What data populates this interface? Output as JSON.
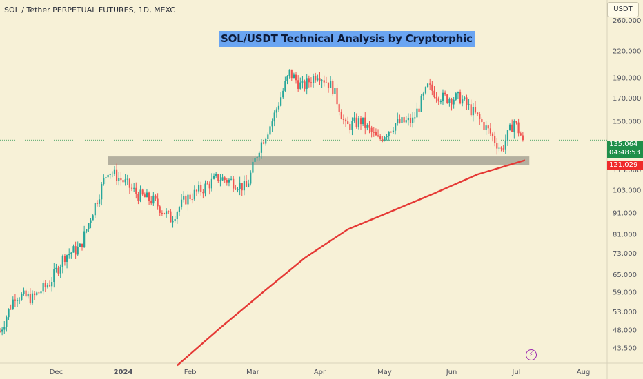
{
  "header": {
    "symbol_line": "SOL / Tether PERPETUAL FUTURES, 1D, MEXC"
  },
  "currency_label": "USDT",
  "current_price": "135.064",
  "countdown": "04:48:53",
  "ma_price": "121.029",
  "bolt_icon": "lightning-icon",
  "colors": {
    "background": "#f7f1d7",
    "up": "#26a69a",
    "down": "#ef5350",
    "ma_line": "#e53935",
    "zone": "#9e9a8c"
  },
  "chart_data": {
    "type": "candlestick",
    "title": "SOL/USDT Technical Analysis by Cryptorphic",
    "scale": "log",
    "y_ticks": [
      260.0,
      220.0,
      190.0,
      170.0,
      150.0,
      135.064,
      115.0,
      103.0,
      91.0,
      81.0,
      73.0,
      65.0,
      59.0,
      53.0,
      48.0,
      43.5
    ],
    "y_tick_labels": [
      "260.000",
      "220.000",
      "190.000",
      "170.000",
      "150.000",
      "115.000",
      "103.000",
      "91.000",
      "81.000",
      "73.000",
      "65.000",
      "59.000",
      "53.000",
      "48.000",
      "43.500"
    ],
    "ylim": [
      40.0,
      290.0
    ],
    "x_labels": [
      {
        "label": "Dec",
        "date": "2023-12-01"
      },
      {
        "label": "2024",
        "date": "2024-01-01"
      },
      {
        "label": "Feb",
        "date": "2024-02-01"
      },
      {
        "label": "Mar",
        "date": "2024-03-01"
      },
      {
        "label": "Apr",
        "date": "2024-04-01"
      },
      {
        "label": "May",
        "date": "2024-05-01"
      },
      {
        "label": "Jun",
        "date": "2024-06-01"
      },
      {
        "label": "Jul",
        "date": "2024-07-01"
      },
      {
        "label": "Aug",
        "date": "2024-08-01"
      }
    ],
    "xlim": [
      "2023-11-05",
      "2024-08-12"
    ],
    "support_zone": {
      "low": 118.0,
      "high": 123.5,
      "start": "2023-12-25",
      "end": "2024-07-07"
    },
    "moving_average": {
      "dates": [
        "2024-01-26",
        "2024-02-15",
        "2024-03-05",
        "2024-03-25",
        "2024-04-14",
        "2024-05-04",
        "2024-05-24",
        "2024-06-13",
        "2024-07-05"
      ],
      "values": [
        39.5,
        48.5,
        58.5,
        71.0,
        83.0,
        91.5,
        101.0,
        112.0,
        121.0
      ]
    },
    "price_anchors": {
      "dates": [
        "2023-11-05",
        "2023-11-12",
        "2023-11-20",
        "2023-11-28",
        "2023-12-05",
        "2023-12-12",
        "2023-12-18",
        "2023-12-25",
        "2024-01-01",
        "2024-01-08",
        "2024-01-15",
        "2024-01-23",
        "2024-01-30",
        "2024-02-06",
        "2024-02-14",
        "2024-02-20",
        "2024-02-27",
        "2024-03-04",
        "2024-03-10",
        "2024-03-18",
        "2024-03-24",
        "2024-03-31",
        "2024-04-07",
        "2024-04-13",
        "2024-04-20",
        "2024-04-28",
        "2024-05-06",
        "2024-05-14",
        "2024-05-21",
        "2024-05-28",
        "2024-06-05",
        "2024-06-12",
        "2024-06-19",
        "2024-06-24",
        "2024-06-30",
        "2024-07-04"
      ],
      "values": [
        47.5,
        58.0,
        57.0,
        62.0,
        72.0,
        75.0,
        92.0,
        115.0,
        108.0,
        100.0,
        97.0,
        88.0,
        98.0,
        103.0,
        110.0,
        108.0,
        104.0,
        130.0,
        150.0,
        195.0,
        180.0,
        195.0,
        180.0,
        145.0,
        150.0,
        135.0,
        148.0,
        150.0,
        180.0,
        170.0,
        170.0,
        155.0,
        140.0,
        128.0,
        150.0,
        135.064
      ]
    }
  }
}
